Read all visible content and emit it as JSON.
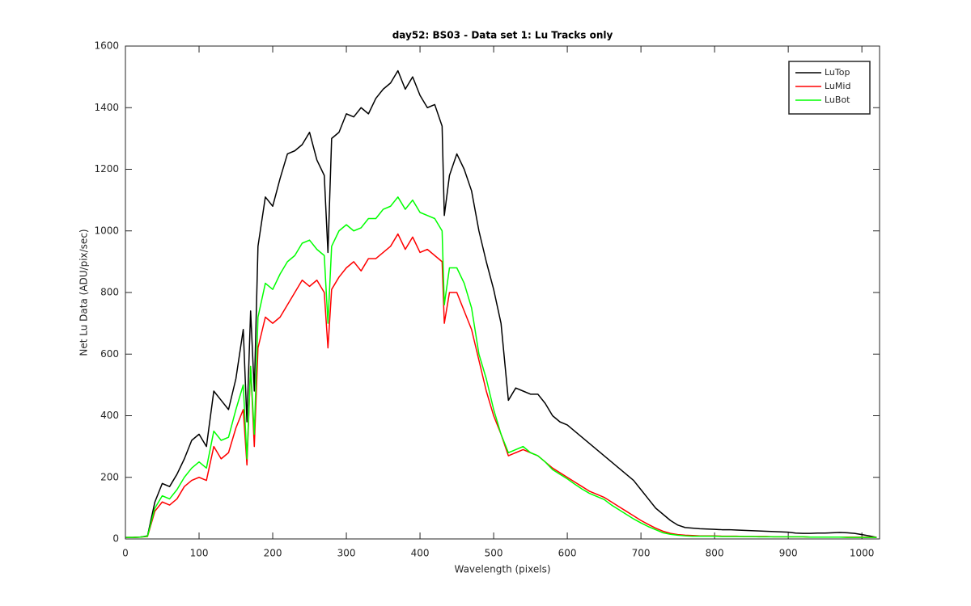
{
  "chart_data": {
    "type": "line",
    "title": "day52: BS03 - Data set 1: Lu Tracks only",
    "xlabel": "Wavelength (pixels)",
    "ylabel": "Net Lu Data (ADU/pix/sec)",
    "xlim": [
      0,
      1024
    ],
    "ylim": [
      0,
      1600
    ],
    "xticks": [
      0,
      100,
      200,
      300,
      400,
      500,
      600,
      700,
      800,
      900,
      1000
    ],
    "yticks": [
      0,
      200,
      400,
      600,
      800,
      1000,
      1200,
      1400,
      1600
    ],
    "legend": "northeast",
    "x": [
      0,
      10,
      20,
      30,
      40,
      50,
      60,
      70,
      80,
      90,
      100,
      110,
      120,
      130,
      140,
      150,
      160,
      165,
      170,
      175,
      180,
      190,
      200,
      210,
      220,
      230,
      240,
      250,
      260,
      270,
      275,
      280,
      290,
      300,
      310,
      320,
      330,
      340,
      350,
      360,
      370,
      380,
      390,
      400,
      410,
      420,
      430,
      433,
      440,
      450,
      460,
      470,
      480,
      490,
      500,
      510,
      520,
      530,
      540,
      550,
      560,
      570,
      580,
      590,
      600,
      610,
      620,
      630,
      640,
      650,
      660,
      670,
      680,
      690,
      700,
      710,
      720,
      730,
      740,
      750,
      760,
      770,
      780,
      790,
      800,
      810,
      820,
      830,
      840,
      850,
      860,
      870,
      880,
      890,
      900,
      910,
      920,
      930,
      940,
      950,
      960,
      970,
      980,
      990,
      1000,
      1010,
      1020
    ],
    "series": [
      {
        "name": "LuTop",
        "color": "#000000",
        "values": [
          5,
          5,
          6,
          10,
          120,
          180,
          170,
          210,
          260,
          320,
          340,
          300,
          480,
          450,
          420,
          520,
          680,
          380,
          740,
          480,
          950,
          1110,
          1080,
          1170,
          1250,
          1260,
          1280,
          1320,
          1230,
          1180,
          930,
          1300,
          1320,
          1380,
          1370,
          1400,
          1380,
          1430,
          1460,
          1480,
          1520,
          1460,
          1500,
          1440,
          1400,
          1410,
          1340,
          1050,
          1180,
          1250,
          1200,
          1130,
          1000,
          900,
          810,
          700,
          450,
          490,
          480,
          470,
          470,
          440,
          400,
          380,
          370,
          350,
          330,
          310,
          290,
          270,
          250,
          230,
          210,
          190,
          160,
          130,
          100,
          80,
          60,
          45,
          37,
          35,
          33,
          32,
          31,
          30,
          30,
          29,
          28,
          27,
          26,
          25,
          24,
          23,
          22,
          19,
          18,
          18,
          19,
          19,
          20,
          21,
          20,
          18,
          14,
          10,
          5
        ]
      },
      {
        "name": "LuMid",
        "color": "#ff0000",
        "values": [
          5,
          5,
          6,
          8,
          90,
          120,
          110,
          130,
          170,
          190,
          200,
          190,
          300,
          260,
          280,
          360,
          420,
          240,
          560,
          300,
          620,
          720,
          700,
          720,
          760,
          800,
          840,
          820,
          840,
          800,
          620,
          810,
          850,
          880,
          900,
          870,
          910,
          910,
          930,
          950,
          990,
          940,
          980,
          930,
          940,
          920,
          900,
          700,
          800,
          800,
          740,
          680,
          580,
          480,
          400,
          340,
          270,
          280,
          290,
          280,
          270,
          250,
          230,
          215,
          200,
          185,
          170,
          155,
          145,
          135,
          120,
          105,
          90,
          75,
          60,
          47,
          35,
          25,
          18,
          14,
          12,
          11,
          10,
          10,
          10,
          9,
          9,
          9,
          8,
          8,
          8,
          8,
          7,
          7,
          7,
          7,
          7,
          6,
          6,
          6,
          6,
          6,
          6,
          6,
          6,
          6,
          5
        ]
      },
      {
        "name": "LuBot",
        "color": "#00ff00",
        "values": [
          5,
          5,
          6,
          9,
          100,
          140,
          130,
          160,
          200,
          230,
          250,
          230,
          350,
          320,
          330,
          420,
          500,
          260,
          560,
          340,
          720,
          830,
          810,
          860,
          900,
          920,
          960,
          970,
          940,
          920,
          700,
          950,
          1000,
          1020,
          1000,
          1010,
          1040,
          1040,
          1070,
          1080,
          1110,
          1070,
          1100,
          1060,
          1050,
          1040,
          1000,
          760,
          880,
          880,
          830,
          750,
          600,
          520,
          420,
          340,
          280,
          290,
          300,
          280,
          270,
          250,
          225,
          210,
          195,
          178,
          162,
          148,
          138,
          128,
          110,
          95,
          80,
          65,
          52,
          40,
          30,
          20,
          15,
          12,
          10,
          9,
          9,
          9,
          9,
          8,
          8,
          8,
          8,
          8,
          7,
          7,
          7,
          7,
          7,
          7,
          7,
          6,
          6,
          6,
          6,
          6,
          5,
          5,
          5,
          5,
          5
        ]
      }
    ]
  }
}
